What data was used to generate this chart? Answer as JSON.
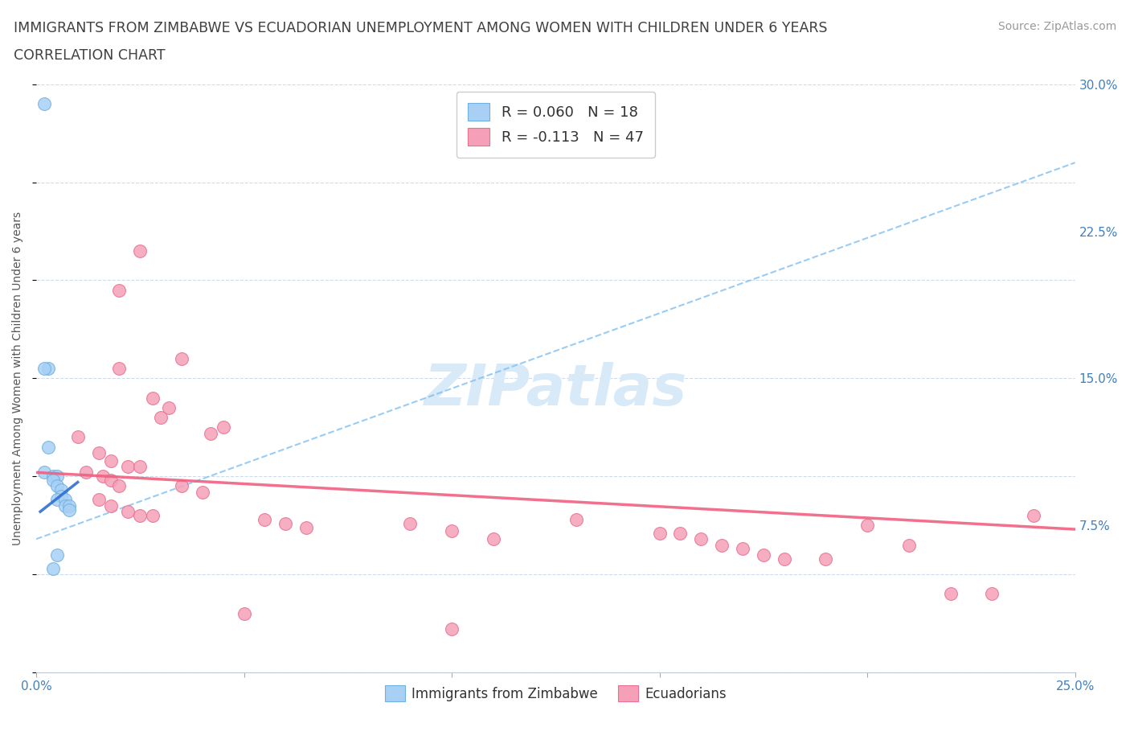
{
  "title_line1": "IMMIGRANTS FROM ZIMBABWE VS ECUADORIAN UNEMPLOYMENT AMONG WOMEN WITH CHILDREN UNDER 6 YEARS",
  "title_line2": "CORRELATION CHART",
  "source": "Source: ZipAtlas.com",
  "ylabel": "Unemployment Among Women with Children Under 6 years",
  "watermark": "ZIPatlas",
  "xlim": [
    0.0,
    0.25
  ],
  "ylim": [
    0.0,
    0.3
  ],
  "xtick_positions": [
    0.0,
    0.05,
    0.1,
    0.15,
    0.2,
    0.25
  ],
  "xtick_labels": [
    "0.0%",
    "",
    "",
    "",
    "",
    "25.0%"
  ],
  "ytick_positions": [
    0.0,
    0.075,
    0.15,
    0.225,
    0.3
  ],
  "ytick_labels": [
    "",
    "7.5%",
    "15.0%",
    "22.5%",
    "30.0%"
  ],
  "legend_line1": "R = 0.060   N = 18",
  "legend_line2": "R = -0.113   N = 47",
  "zimbabwe_color": "#a8d0f5",
  "ecuadorian_color": "#f5a0b8",
  "zim_edge_color": "#70b0e0",
  "ecu_edge_color": "#e87090",
  "trendline_zim_solid_color": "#3070d0",
  "trendline_zim_dashed_color": "#80c0f0",
  "trendline_ecu_color": "#f06080",
  "background_color": "#ffffff",
  "grid_color": "#c8d8e8",
  "title_color": "#404040",
  "axis_label_color": "#4080c0",
  "watermark_color": "#d8eaf8",
  "zimbabwe_points": [
    [
      0.002,
      0.29
    ],
    [
      0.003,
      0.155
    ],
    [
      0.002,
      0.155
    ],
    [
      0.003,
      0.115
    ],
    [
      0.002,
      0.102
    ],
    [
      0.004,
      0.1
    ],
    [
      0.005,
      0.1
    ],
    [
      0.004,
      0.098
    ],
    [
      0.005,
      0.095
    ],
    [
      0.006,
      0.093
    ],
    [
      0.006,
      0.09
    ],
    [
      0.005,
      0.088
    ],
    [
      0.007,
      0.088
    ],
    [
      0.007,
      0.085
    ],
    [
      0.008,
      0.085
    ],
    [
      0.008,
      0.083
    ],
    [
      0.005,
      0.06
    ],
    [
      0.004,
      0.053
    ]
  ],
  "ecuadorian_points": [
    [
      0.025,
      0.215
    ],
    [
      0.02,
      0.195
    ],
    [
      0.035,
      0.16
    ],
    [
      0.02,
      0.155
    ],
    [
      0.028,
      0.14
    ],
    [
      0.032,
      0.135
    ],
    [
      0.03,
      0.13
    ],
    [
      0.01,
      0.12
    ],
    [
      0.045,
      0.125
    ],
    [
      0.042,
      0.122
    ],
    [
      0.015,
      0.112
    ],
    [
      0.018,
      0.108
    ],
    [
      0.022,
      0.105
    ],
    [
      0.025,
      0.105
    ],
    [
      0.012,
      0.102
    ],
    [
      0.016,
      0.1
    ],
    [
      0.018,
      0.098
    ],
    [
      0.02,
      0.095
    ],
    [
      0.035,
      0.095
    ],
    [
      0.04,
      0.092
    ],
    [
      0.015,
      0.088
    ],
    [
      0.018,
      0.085
    ],
    [
      0.022,
      0.082
    ],
    [
      0.025,
      0.08
    ],
    [
      0.028,
      0.08
    ],
    [
      0.055,
      0.078
    ],
    [
      0.06,
      0.076
    ],
    [
      0.065,
      0.074
    ],
    [
      0.09,
      0.076
    ],
    [
      0.1,
      0.072
    ],
    [
      0.11,
      0.068
    ],
    [
      0.13,
      0.078
    ],
    [
      0.15,
      0.071
    ],
    [
      0.155,
      0.071
    ],
    [
      0.16,
      0.068
    ],
    [
      0.165,
      0.065
    ],
    [
      0.17,
      0.063
    ],
    [
      0.175,
      0.06
    ],
    [
      0.18,
      0.058
    ],
    [
      0.19,
      0.058
    ],
    [
      0.2,
      0.075
    ],
    [
      0.21,
      0.065
    ],
    [
      0.22,
      0.04
    ],
    [
      0.23,
      0.04
    ],
    [
      0.24,
      0.08
    ],
    [
      0.05,
      0.03
    ],
    [
      0.1,
      0.022
    ]
  ],
  "trendline_zim_dashed": [
    0.0,
    0.068,
    0.25,
    0.26
  ],
  "trendline_zim_solid": [
    0.001,
    0.082,
    0.01,
    0.097
  ],
  "trendline_ecu": [
    0.0,
    0.102,
    0.25,
    0.073
  ]
}
